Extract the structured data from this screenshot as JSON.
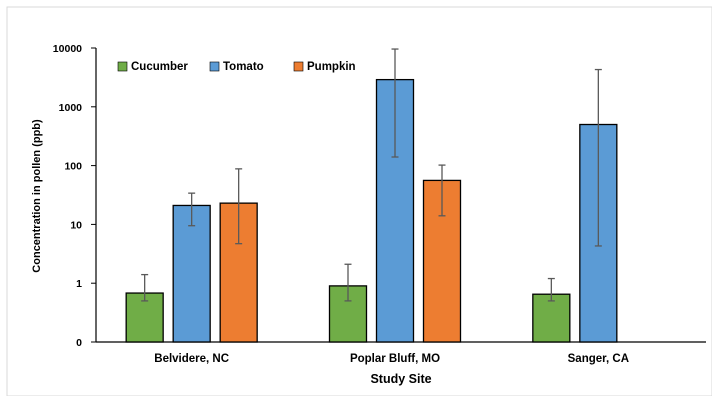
{
  "chart_data": {
    "type": "bar",
    "title": "",
    "xlabel": "Study Site",
    "ylabel": "Concentration in pollen (ppb)",
    "yscale": "log",
    "ylim": [
      0.1,
      10000
    ],
    "yticks": [
      {
        "value": 0.1,
        "label": "0"
      },
      {
        "value": 1,
        "label": "1"
      },
      {
        "value": 10,
        "label": "10"
      },
      {
        "value": 100,
        "label": "100"
      },
      {
        "value": 1000,
        "label": "1000"
      },
      {
        "value": 10000,
        "label": "10000"
      }
    ],
    "categories": [
      "Belvidere, NC",
      "Poplar Bluff, MO",
      "Sanger, CA"
    ],
    "legend_position": "top-left",
    "grid": false,
    "series": [
      {
        "name": "Cucumber",
        "color": "#70ad47",
        "values": [
          0.68,
          0.9,
          0.65
        ],
        "err_low": [
          0.5,
          0.5,
          0.5
        ],
        "err_high": [
          1.4,
          2.1,
          1.2
        ]
      },
      {
        "name": "Tomato",
        "color": "#5b9bd5",
        "values": [
          21,
          2900,
          500
        ],
        "err_low": [
          9.5,
          140,
          4.3
        ],
        "err_high": [
          34,
          9600,
          4300
        ]
      },
      {
        "name": "Pumpkin",
        "color": "#ed7d31",
        "values": [
          23,
          56,
          null
        ],
        "err_low": [
          4.7,
          14,
          null
        ],
        "err_high": [
          88,
          102,
          null
        ]
      }
    ]
  }
}
